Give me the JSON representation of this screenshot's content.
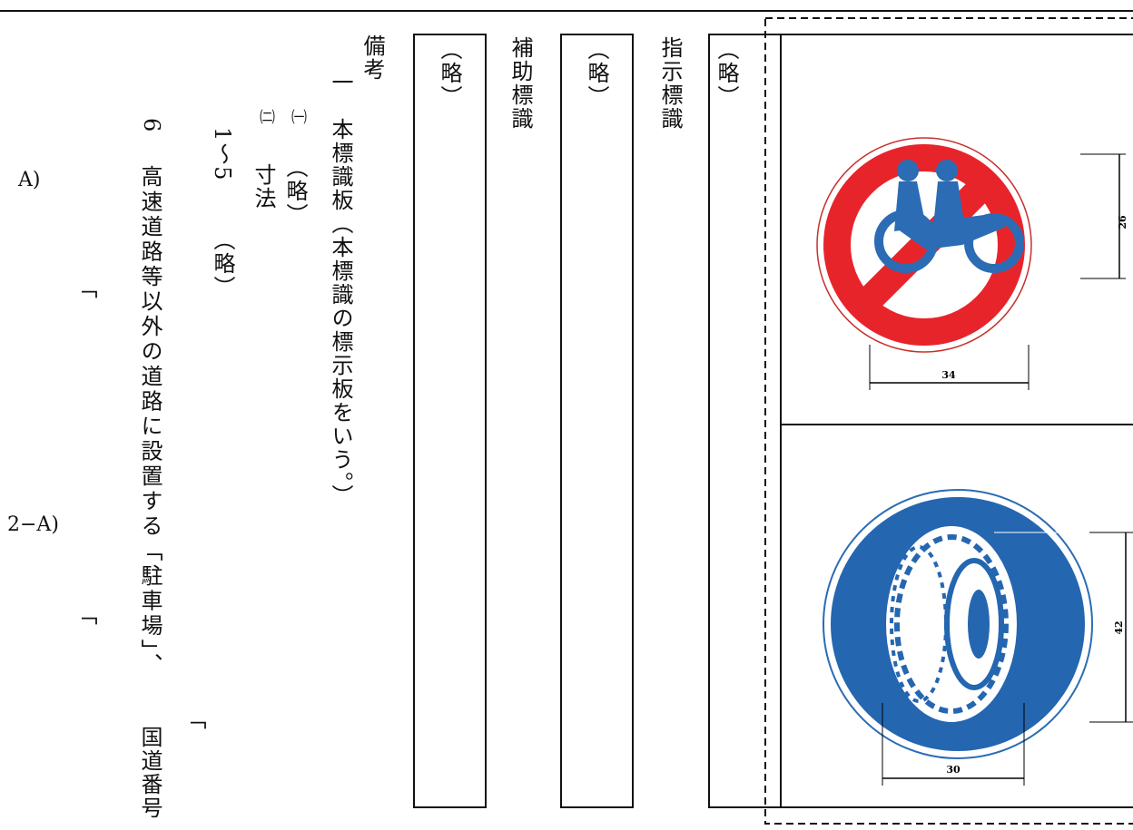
{
  "sections": [
    {
      "cell": "（略）",
      "heading": "指示標識"
    },
    {
      "cell": "（略）",
      "heading": "補助標識"
    },
    {
      "cell": "（略）"
    }
  ],
  "remarks": {
    "heading": "備考",
    "item_1": "一　本標識板（本標識の標示板をいう。）",
    "sub_1_num": "㈠",
    "sub_1_text": "（略）",
    "sub_2_num": "㈡",
    "sub_2_text": "寸法",
    "range": "1〜5",
    "range_text": "（略）",
    "item_6_num": "6",
    "item_6_text": "高速道路等以外の道路に設置する「駐車場」、",
    "item_6_tail": "国道番号",
    "ref_a": "A)",
    "ref_2a": "2−A)",
    "bracket_1": "「",
    "bracket_2": "「",
    "bracket_3": "「"
  },
  "signs": [
    {
      "height": "26",
      "width": "34"
    },
    {
      "height": "42",
      "width": "30"
    }
  ]
}
